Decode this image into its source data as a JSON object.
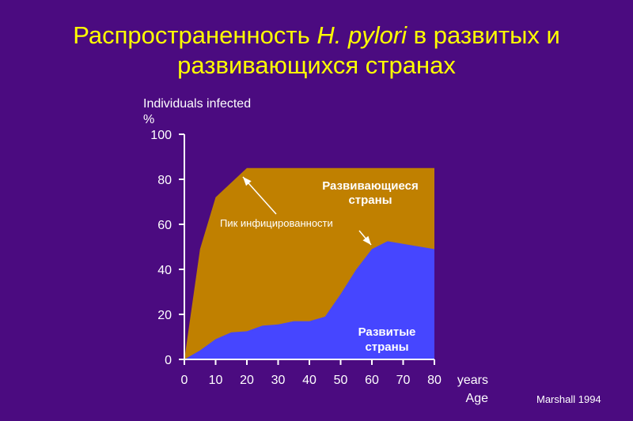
{
  "title": {
    "part1": "Распространенность ",
    "italic": "H. pylori",
    "part2": " в развитых и",
    "line2": "развивающихся странах"
  },
  "source": "Marshall 1994",
  "annotations": {
    "developing": [
      "Развивающиеся",
      "страны"
    ],
    "developed": [
      "Развитые",
      "страны"
    ],
    "peak": "Пик инфицированности"
  },
  "colors": {
    "background": "#4b0b80",
    "title": "#ffff00",
    "developing_fill": "#c08000",
    "developed_fill": "#4646ff",
    "axis": "#ffffff"
  },
  "chart_data": {
    "type": "area",
    "ylabel": [
      "Individuals infected",
      "%"
    ],
    "xlabel": [
      "years",
      "Age"
    ],
    "xlim": [
      0,
      80
    ],
    "ylim": [
      0,
      100
    ],
    "xticks": [
      0,
      10,
      20,
      30,
      40,
      50,
      60,
      70,
      80
    ],
    "yticks": [
      0,
      20,
      40,
      60,
      80,
      100
    ],
    "series": [
      {
        "name": "Развивающиеся страны",
        "x": [
          0,
          5,
          10,
          20,
          80
        ],
        "y": [
          0,
          49,
          72,
          85,
          85
        ]
      },
      {
        "name": "Развитые страны",
        "x": [
          0,
          5,
          10,
          15,
          20,
          25,
          30,
          35,
          40,
          45,
          50,
          55,
          60,
          65,
          80
        ],
        "y": [
          0,
          4,
          9,
          12,
          12.5,
          15,
          15.5,
          17,
          17,
          19,
          29,
          40,
          49,
          52.5,
          49
        ]
      }
    ]
  }
}
